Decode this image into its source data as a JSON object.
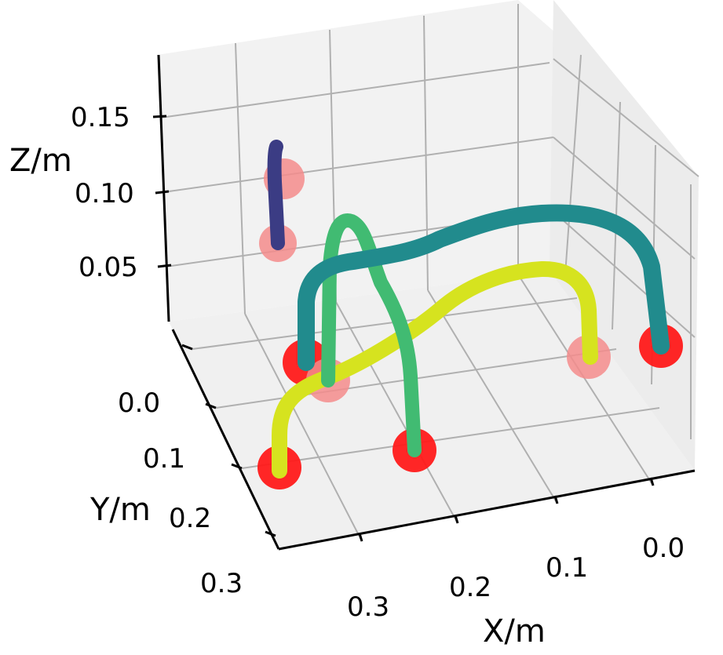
{
  "chart_data": {
    "type": "scatter3d",
    "view": "3d-perspective",
    "axes": {
      "x": {
        "label": "X/m",
        "ticks": [
          "0.0",
          "0.1",
          "0.2",
          "0.3"
        ]
      },
      "y": {
        "label": "Y/m",
        "ticks": [
          "0.0",
          "0.1",
          "0.2",
          "0.3"
        ]
      },
      "z": {
        "label": "Z/m",
        "ticks": [
          "0.05",
          "0.10",
          "0.15"
        ]
      }
    },
    "grid": true,
    "colors": {
      "pane": "#f2f2f2",
      "grid": "#b0b0b0",
      "marker_strong": "#ff1a1a",
      "marker_light": "#f48c8c"
    },
    "markers": [
      {
        "style": "strong",
        "x": 0.3,
        "y": 0.25,
        "z": 0.0
      },
      {
        "style": "strong",
        "x": 0.22,
        "y": 0.23,
        "z": 0.0
      },
      {
        "style": "strong",
        "x": 0.35,
        "y": 0.0,
        "z": 0.0
      },
      {
        "style": "strong",
        "x": 0.0,
        "y": 0.02,
        "z": 0.0
      },
      {
        "style": "light",
        "x": 0.32,
        "y": 0.05,
        "z": 0.0
      },
      {
        "style": "light",
        "x": 0.08,
        "y": 0.02,
        "z": 0.0
      },
      {
        "style": "light",
        "x": 0.45,
        "y": -0.1,
        "z": 0.06
      },
      {
        "style": "light",
        "x": 0.45,
        "y": -0.1,
        "z": 0.11
      }
    ],
    "series": [
      {
        "color": "#d6e31f"
      },
      {
        "color": "#41bb72"
      },
      {
        "color": "#218b8d"
      },
      {
        "color": "#3b3c84"
      }
    ]
  }
}
